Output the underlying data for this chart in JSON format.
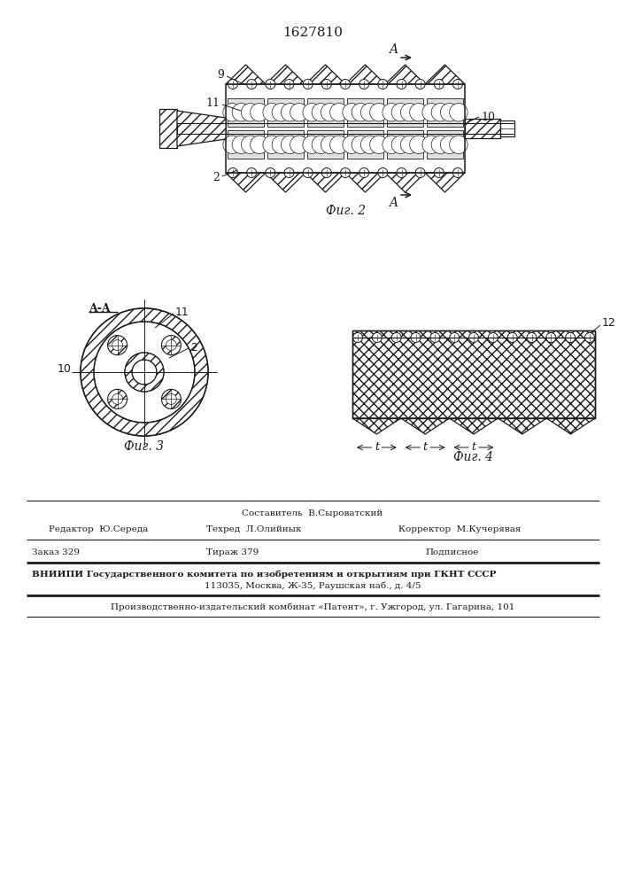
{
  "patent_number": "1627810",
  "fig2_caption": "Фиг. 2",
  "fig3_caption": "Фиг. 3",
  "fig4_caption": "Фиг. 4",
  "section_label": "A-A",
  "label_9": "9",
  "label_11": "11",
  "label_10": "10",
  "label_2": "2",
  "label_12": "12",
  "label_t": "t",
  "footer_costituent": "Составитель  В.Сыроватский",
  "footer_editor": "Редактор  Ю.Середа",
  "footer_techred": "Техред  Л.Олийнык",
  "footer_corrector": "Корректор  М.Кучерявая",
  "footer_order": "Заказ 329",
  "footer_tirage": "Тираж 379",
  "footer_signed": "Подписное",
  "footer_vnipi": "ВНИИПИ Государственного комитета по изобретениям и открытиям при ГКНТ СССР",
  "footer_address": "113035, Москва, Ж-35, Раушская наб., д. 4/5",
  "footer_factory": "Производственно-издательский комбинат «Патент», г. Ужгород, ул. Гагарина, 101",
  "line_color": "#1a1a1a"
}
